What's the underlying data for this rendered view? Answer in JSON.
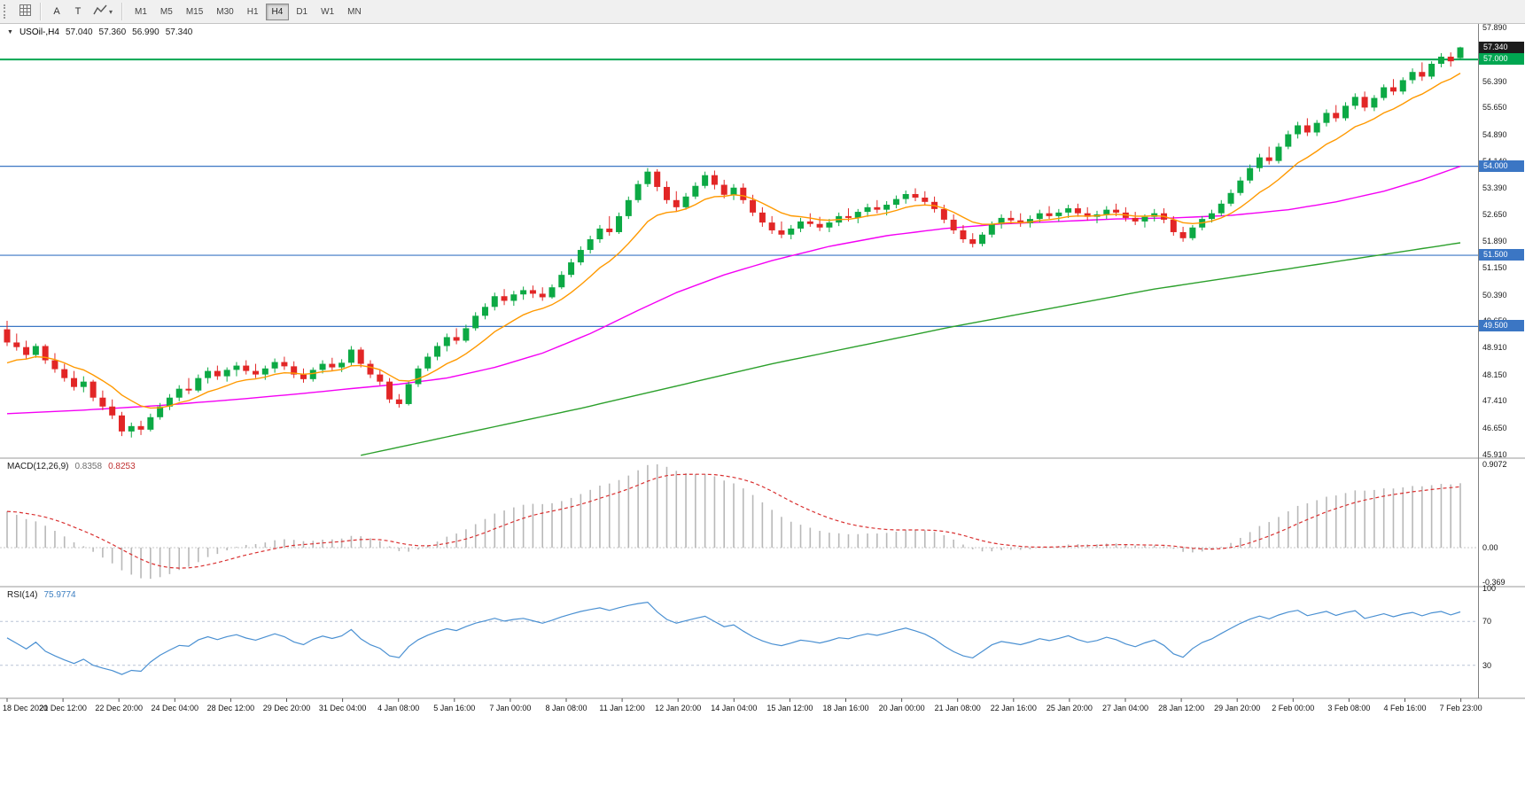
{
  "toolbar": {
    "buttons": [
      {
        "label": "A"
      },
      {
        "label": "T"
      }
    ],
    "timeframes": [
      {
        "label": "M1",
        "active": false
      },
      {
        "label": "M5",
        "active": false
      },
      {
        "label": "M15",
        "active": false
      },
      {
        "label": "M30",
        "active": false
      },
      {
        "label": "H1",
        "active": false
      },
      {
        "label": "H4",
        "active": true
      },
      {
        "label": "D1",
        "active": false
      },
      {
        "label": "W1",
        "active": false
      },
      {
        "label": "MN",
        "active": false
      }
    ]
  },
  "chart_data": {
    "type": "candlestick",
    "header": {
      "symbol": "USOil-,H4",
      "open": "57.040",
      "high": "57.360",
      "low": "56.990",
      "close": "57.340"
    },
    "price_axis": {
      "min": 45.8,
      "max": 58.0,
      "ticks": [
        57.89,
        56.39,
        55.65,
        54.89,
        54.14,
        53.39,
        52.65,
        51.89,
        51.15,
        50.39,
        49.65,
        48.91,
        48.15,
        47.41,
        46.65,
        45.91
      ]
    },
    "current_price": {
      "value": 57.34,
      "label": "57.340",
      "badge_color": "#1c1c1c"
    },
    "hlines": [
      {
        "price": 57.0,
        "label": "57.000",
        "color": "#00A651",
        "width": 2
      },
      {
        "price": 54.0,
        "label": "54.000",
        "color": "#3b76c4",
        "width": 1.2
      },
      {
        "price": 51.5,
        "label": "51.500",
        "color": "#3b76c4",
        "width": 1.2
      },
      {
        "price": 49.5,
        "label": "49.500",
        "color": "#3b76c4",
        "width": 1.2
      }
    ],
    "colors": {
      "up": "#0ca944",
      "down": "#e22626",
      "hist": "#b8b8b8",
      "signal": "#d93030",
      "rsi_line": "#4a90d2"
    },
    "moving_averages": {
      "ema_fast": {
        "period": 10,
        "seed": 48.35,
        "color": "#ff9900"
      },
      "ma_magenta": {
        "color": "#f400f4",
        "points": [
          [
            0,
            47.05
          ],
          [
            8,
            47.15
          ],
          [
            16,
            47.28
          ],
          [
            24,
            47.45
          ],
          [
            31,
            47.62
          ],
          [
            37,
            47.78
          ],
          [
            41,
            47.88
          ],
          [
            46,
            48.05
          ],
          [
            51,
            48.35
          ],
          [
            56,
            48.75
          ],
          [
            61,
            49.3
          ],
          [
            66,
            49.95
          ],
          [
            70,
            50.45
          ],
          [
            75,
            50.95
          ],
          [
            80,
            51.35
          ],
          [
            86,
            51.75
          ],
          [
            92,
            52.05
          ],
          [
            98,
            52.25
          ],
          [
            104,
            52.38
          ],
          [
            110,
            52.45
          ],
          [
            116,
            52.52
          ],
          [
            122,
            52.55
          ],
          [
            128,
            52.62
          ],
          [
            134,
            52.78
          ],
          [
            139,
            53.0
          ],
          [
            144,
            53.3
          ],
          [
            148,
            53.62
          ],
          [
            152,
            54.0
          ]
        ]
      },
      "ma_green": {
        "color": "#2ca02c",
        "points": [
          [
            37,
            45.88
          ],
          [
            60,
            47.2
          ],
          [
            80,
            48.45
          ],
          [
            99,
            49.5
          ],
          [
            120,
            50.55
          ],
          [
            136,
            51.2
          ],
          [
            152,
            51.85
          ]
        ]
      }
    },
    "macd": {
      "name": "MACD(12,26,9)",
      "main_value": "0.8358",
      "signal_value": "0.8253",
      "fast": 12,
      "slow": 26,
      "signal": 9,
      "ticks": {
        "top": "0.9072",
        "zero": "0.00",
        "bottom": "-0.369"
      }
    },
    "rsi": {
      "name": "RSI(14)",
      "value": "75.9774",
      "period": 14,
      "levels": [
        70,
        30
      ],
      "ticks": [
        100,
        70,
        30
      ]
    },
    "time_labels": [
      "18 Dec 2020",
      "21 Dec 12:00",
      "22 Dec 20:00",
      "24 Dec 04:00",
      "28 Dec 12:00",
      "29 Dec 20:00",
      "31 Dec 04:00",
      "4 Jan 08:00",
      "5 Jan 16:00",
      "7 Jan 00:00",
      "8 Jan 08:00",
      "11 Jan 12:00",
      "12 Jan 20:00",
      "14 Jan 04:00",
      "15 Jan 12:00",
      "18 Jan 16:00",
      "20 Jan 00:00",
      "21 Jan 08:00",
      "22 Jan 16:00",
      "25 Jan 20:00",
      "27 Jan 04:00",
      "28 Jan 12:00",
      "29 Jan 20:00",
      "2 Feb 00:00",
      "3 Feb 08:00",
      "4 Feb 16:00",
      "7 Feb 23:00"
    ],
    "candles": [
      [
        49.42,
        49.66,
        48.95,
        49.05
      ],
      [
        49.05,
        49.3,
        48.82,
        48.92
      ],
      [
        48.92,
        49.1,
        48.6,
        48.7
      ],
      [
        48.7,
        49.02,
        48.62,
        48.95
      ],
      [
        48.95,
        49.0,
        48.45,
        48.55
      ],
      [
        48.55,
        48.75,
        48.2,
        48.3
      ],
      [
        48.3,
        48.45,
        47.95,
        48.05
      ],
      [
        48.05,
        48.25,
        47.7,
        47.8
      ],
      [
        47.8,
        48.1,
        47.65,
        47.95
      ],
      [
        47.95,
        48.0,
        47.4,
        47.5
      ],
      [
        47.5,
        47.7,
        47.15,
        47.25
      ],
      [
        47.25,
        47.45,
        46.9,
        47.0
      ],
      [
        47.0,
        47.1,
        46.42,
        46.55
      ],
      [
        46.55,
        46.8,
        46.38,
        46.7
      ],
      [
        46.7,
        46.85,
        46.45,
        46.6
      ],
      [
        46.6,
        47.05,
        46.55,
        46.95
      ],
      [
        46.95,
        47.35,
        46.88,
        47.25
      ],
      [
        47.25,
        47.6,
        47.15,
        47.5
      ],
      [
        47.5,
        47.85,
        47.4,
        47.75
      ],
      [
        47.75,
        48.05,
        47.6,
        47.7
      ],
      [
        47.7,
        48.15,
        47.65,
        48.05
      ],
      [
        48.05,
        48.35,
        47.9,
        48.25
      ],
      [
        48.25,
        48.4,
        48.0,
        48.1
      ],
      [
        48.1,
        48.35,
        47.95,
        48.28
      ],
      [
        48.28,
        48.5,
        48.1,
        48.4
      ],
      [
        48.4,
        48.55,
        48.15,
        48.25
      ],
      [
        48.25,
        48.45,
        48.05,
        48.15
      ],
      [
        48.15,
        48.4,
        48.0,
        48.32
      ],
      [
        48.32,
        48.6,
        48.2,
        48.5
      ],
      [
        48.5,
        48.65,
        48.28,
        48.38
      ],
      [
        48.38,
        48.52,
        48.05,
        48.15
      ],
      [
        48.15,
        48.32,
        47.92,
        48.02
      ],
      [
        48.02,
        48.35,
        47.95,
        48.28
      ],
      [
        48.28,
        48.55,
        48.18,
        48.45
      ],
      [
        48.45,
        48.62,
        48.25,
        48.35
      ],
      [
        48.35,
        48.58,
        48.22,
        48.48
      ],
      [
        48.48,
        48.95,
        48.4,
        48.85
      ],
      [
        48.85,
        48.92,
        48.35,
        48.45
      ],
      [
        48.45,
        48.55,
        48.05,
        48.15
      ],
      [
        48.15,
        48.3,
        47.85,
        47.95
      ],
      [
        47.95,
        48.05,
        47.35,
        47.45
      ],
      [
        47.45,
        47.6,
        47.22,
        47.32
      ],
      [
        47.32,
        47.95,
        47.28,
        47.88
      ],
      [
        47.88,
        48.4,
        47.8,
        48.32
      ],
      [
        48.32,
        48.75,
        48.25,
        48.65
      ],
      [
        48.65,
        49.05,
        48.55,
        48.95
      ],
      [
        48.95,
        49.3,
        48.8,
        49.2
      ],
      [
        49.2,
        49.45,
        49.0,
        49.1
      ],
      [
        49.1,
        49.55,
        49.05,
        49.45
      ],
      [
        49.45,
        49.9,
        49.38,
        49.8
      ],
      [
        49.8,
        50.15,
        49.7,
        50.05
      ],
      [
        50.05,
        50.45,
        49.95,
        50.35
      ],
      [
        50.35,
        50.55,
        50.1,
        50.22
      ],
      [
        50.22,
        50.5,
        50.08,
        50.4
      ],
      [
        50.4,
        50.62,
        50.25,
        50.52
      ],
      [
        50.52,
        50.65,
        50.3,
        50.42
      ],
      [
        50.42,
        50.6,
        50.22,
        50.32
      ],
      [
        50.32,
        50.68,
        50.28,
        50.6
      ],
      [
        50.6,
        51.05,
        50.55,
        50.95
      ],
      [
        50.95,
        51.4,
        50.88,
        51.3
      ],
      [
        51.3,
        51.75,
        51.22,
        51.65
      ],
      [
        51.65,
        52.05,
        51.55,
        51.95
      ],
      [
        51.95,
        52.35,
        51.85,
        52.25
      ],
      [
        52.25,
        52.6,
        52.05,
        52.15
      ],
      [
        52.15,
        52.7,
        52.1,
        52.6
      ],
      [
        52.6,
        53.15,
        52.52,
        53.05
      ],
      [
        53.05,
        53.6,
        52.98,
        53.5
      ],
      [
        53.5,
        53.95,
        53.42,
        53.85
      ],
      [
        53.85,
        53.92,
        53.3,
        53.42
      ],
      [
        53.42,
        53.58,
        52.95,
        53.05
      ],
      [
        53.05,
        53.3,
        52.72,
        52.85
      ],
      [
        52.85,
        53.25,
        52.78,
        53.15
      ],
      [
        53.15,
        53.55,
        53.08,
        53.45
      ],
      [
        53.45,
        53.85,
        53.38,
        53.75
      ],
      [
        53.75,
        53.88,
        53.35,
        53.48
      ],
      [
        53.48,
        53.62,
        53.1,
        53.2
      ],
      [
        53.2,
        53.5,
        53.05,
        53.4
      ],
      [
        53.4,
        53.52,
        52.95,
        53.05
      ],
      [
        53.05,
        53.2,
        52.6,
        52.7
      ],
      [
        52.7,
        52.85,
        52.3,
        52.42
      ],
      [
        52.42,
        52.6,
        52.1,
        52.2
      ],
      [
        52.2,
        52.45,
        51.98,
        52.08
      ],
      [
        52.08,
        52.35,
        51.95,
        52.25
      ],
      [
        52.25,
        52.55,
        52.15,
        52.45
      ],
      [
        52.45,
        52.68,
        52.3,
        52.38
      ],
      [
        52.38,
        52.58,
        52.18,
        52.28
      ],
      [
        52.28,
        52.52,
        52.15,
        52.42
      ],
      [
        52.42,
        52.7,
        52.32,
        52.6
      ],
      [
        52.6,
        52.82,
        52.45,
        52.55
      ],
      [
        52.55,
        52.8,
        52.4,
        52.72
      ],
      [
        52.72,
        52.95,
        52.58,
        52.85
      ],
      [
        52.85,
        53.05,
        52.68,
        52.78
      ],
      [
        52.78,
        53.02,
        52.62,
        52.92
      ],
      [
        52.92,
        53.18,
        52.82,
        53.08
      ],
      [
        53.08,
        53.32,
        52.95,
        53.22
      ],
      [
        53.22,
        53.38,
        53.02,
        53.12
      ],
      [
        53.12,
        53.3,
        52.9,
        53.0
      ],
      [
        53.0,
        53.15,
        52.7,
        52.8
      ],
      [
        52.8,
        52.92,
        52.4,
        52.5
      ],
      [
        52.5,
        52.65,
        52.1,
        52.2
      ],
      [
        52.2,
        52.35,
        51.85,
        51.95
      ],
      [
        51.95,
        52.12,
        51.72,
        51.82
      ],
      [
        51.82,
        52.15,
        51.75,
        52.08
      ],
      [
        52.08,
        52.45,
        52.0,
        52.38
      ],
      [
        52.38,
        52.65,
        52.25,
        52.55
      ],
      [
        52.55,
        52.75,
        52.38,
        52.48
      ],
      [
        52.48,
        52.68,
        52.3,
        52.4
      ],
      [
        52.4,
        52.62,
        52.28,
        52.52
      ],
      [
        52.52,
        52.78,
        52.42,
        52.68
      ],
      [
        52.68,
        52.88,
        52.52,
        52.6
      ],
      [
        52.6,
        52.8,
        52.45,
        52.7
      ],
      [
        52.7,
        52.92,
        52.55,
        52.82
      ],
      [
        52.82,
        52.95,
        52.58,
        52.68
      ],
      [
        52.68,
        52.85,
        52.48,
        52.58
      ],
      [
        52.58,
        52.75,
        52.4,
        52.65
      ],
      [
        52.65,
        52.88,
        52.52,
        52.78
      ],
      [
        52.78,
        52.95,
        52.6,
        52.7
      ],
      [
        52.7,
        52.85,
        52.45,
        52.55
      ],
      [
        52.55,
        52.72,
        52.35,
        52.45
      ],
      [
        52.45,
        52.65,
        52.28,
        52.58
      ],
      [
        52.58,
        52.8,
        52.45,
        52.68
      ],
      [
        52.68,
        52.82,
        52.4,
        52.5
      ],
      [
        52.5,
        52.6,
        52.05,
        52.15
      ],
      [
        52.15,
        52.3,
        51.88,
        51.98
      ],
      [
        51.98,
        52.35,
        51.92,
        52.28
      ],
      [
        52.28,
        52.6,
        52.2,
        52.52
      ],
      [
        52.52,
        52.78,
        52.42,
        52.68
      ],
      [
        52.68,
        53.05,
        52.6,
        52.95
      ],
      [
        52.95,
        53.35,
        52.88,
        53.25
      ],
      [
        53.25,
        53.7,
        53.18,
        53.6
      ],
      [
        53.6,
        54.05,
        53.52,
        53.95
      ],
      [
        53.95,
        54.35,
        53.85,
        54.25
      ],
      [
        54.25,
        54.55,
        54.05,
        54.15
      ],
      [
        54.15,
        54.65,
        54.08,
        54.55
      ],
      [
        54.55,
        55.0,
        54.48,
        54.9
      ],
      [
        54.9,
        55.25,
        54.78,
        55.15
      ],
      [
        55.15,
        55.35,
        54.85,
        54.95
      ],
      [
        54.95,
        55.3,
        54.85,
        55.22
      ],
      [
        55.22,
        55.6,
        55.12,
        55.5
      ],
      [
        55.5,
        55.72,
        55.25,
        55.35
      ],
      [
        55.35,
        55.8,
        55.28,
        55.7
      ],
      [
        55.7,
        56.05,
        55.6,
        55.95
      ],
      [
        55.95,
        56.1,
        55.55,
        55.65
      ],
      [
        55.65,
        56.0,
        55.55,
        55.92
      ],
      [
        55.92,
        56.3,
        55.85,
        56.22
      ],
      [
        56.22,
        56.45,
        56.0,
        56.1
      ],
      [
        56.1,
        56.5,
        56.02,
        56.42
      ],
      [
        56.42,
        56.75,
        56.32,
        56.65
      ],
      [
        56.65,
        56.92,
        56.4,
        56.52
      ],
      [
        56.52,
        56.95,
        56.45,
        56.88
      ],
      [
        56.88,
        57.18,
        56.78,
        57.08
      ],
      [
        57.08,
        57.2,
        56.8,
        56.95
      ],
      [
        57.04,
        57.36,
        56.99,
        57.34
      ]
    ]
  }
}
